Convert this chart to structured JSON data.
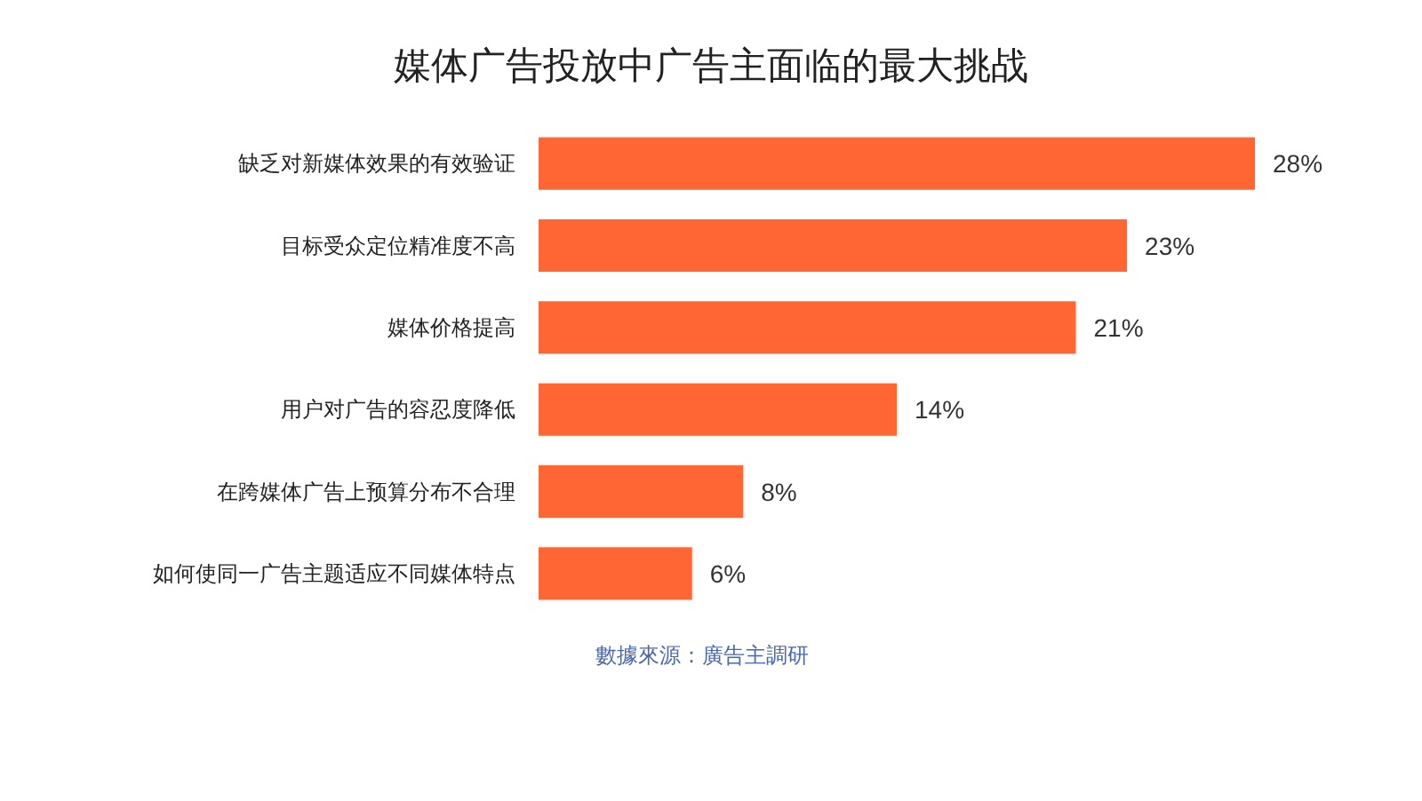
{
  "chart_data": {
    "type": "bar",
    "orientation": "horizontal",
    "title": "媒体广告投放中广告主面临的最大挑战",
    "categories": [
      "缺乏对新媒体效果的有效验证",
      "目标受众定位精准度不高",
      "媒体价格提高",
      "用户对广告的容忍度降低",
      "在跨媒体广告上预算分布不合理",
      "如何使同一广告主题适应不同媒体特点"
    ],
    "values": [
      28,
      23,
      21,
      14,
      8,
      6
    ],
    "value_labels": [
      "28%",
      "23%",
      "21%",
      "14%",
      "8%",
      "6%"
    ],
    "color": "#ff6633",
    "annotations": [
      "數據來源：廣告主調研"
    ]
  }
}
